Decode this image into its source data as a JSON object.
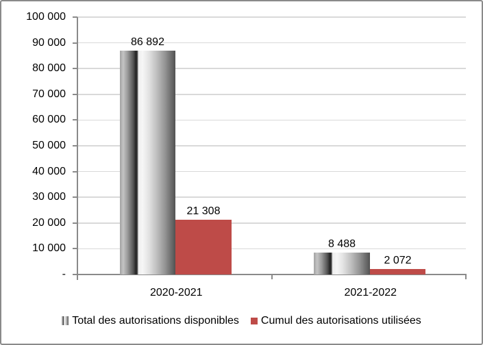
{
  "chart_data": {
    "type": "bar",
    "title": "",
    "categories": [
      "2020-2021",
      "2021-2022"
    ],
    "series": [
      {
        "name": "Total des autorisations disponibles",
        "values": [
          86892,
          8488
        ],
        "value_labels": [
          "86 892",
          "8 488"
        ],
        "fill": "gray-cylinder-gradient"
      },
      {
        "name": "Cumul des autorisations utilisées",
        "values": [
          21308,
          2072
        ],
        "value_labels": [
          "21 308",
          "2 072"
        ],
        "color": "#be4b48"
      }
    ],
    "ylim": [
      0,
      100000
    ],
    "y_ticks": {
      "values": [
        100000,
        90000,
        80000,
        70000,
        60000,
        50000,
        40000,
        30000,
        20000,
        10000,
        0
      ],
      "labels": [
        "100 000",
        "90 000",
        "80 000",
        "70 000",
        "60 000",
        "50 000",
        "40 000",
        "30 000",
        "20 000",
        "10 000",
        "-"
      ]
    },
    "grid": "horizontal-gridlines",
    "legend_position": "bottom",
    "colors": {
      "gridline": "#d9d9d9",
      "axis": "#8a8a8a",
      "text": "#000000",
      "used_series_red": "#be4b48"
    }
  }
}
